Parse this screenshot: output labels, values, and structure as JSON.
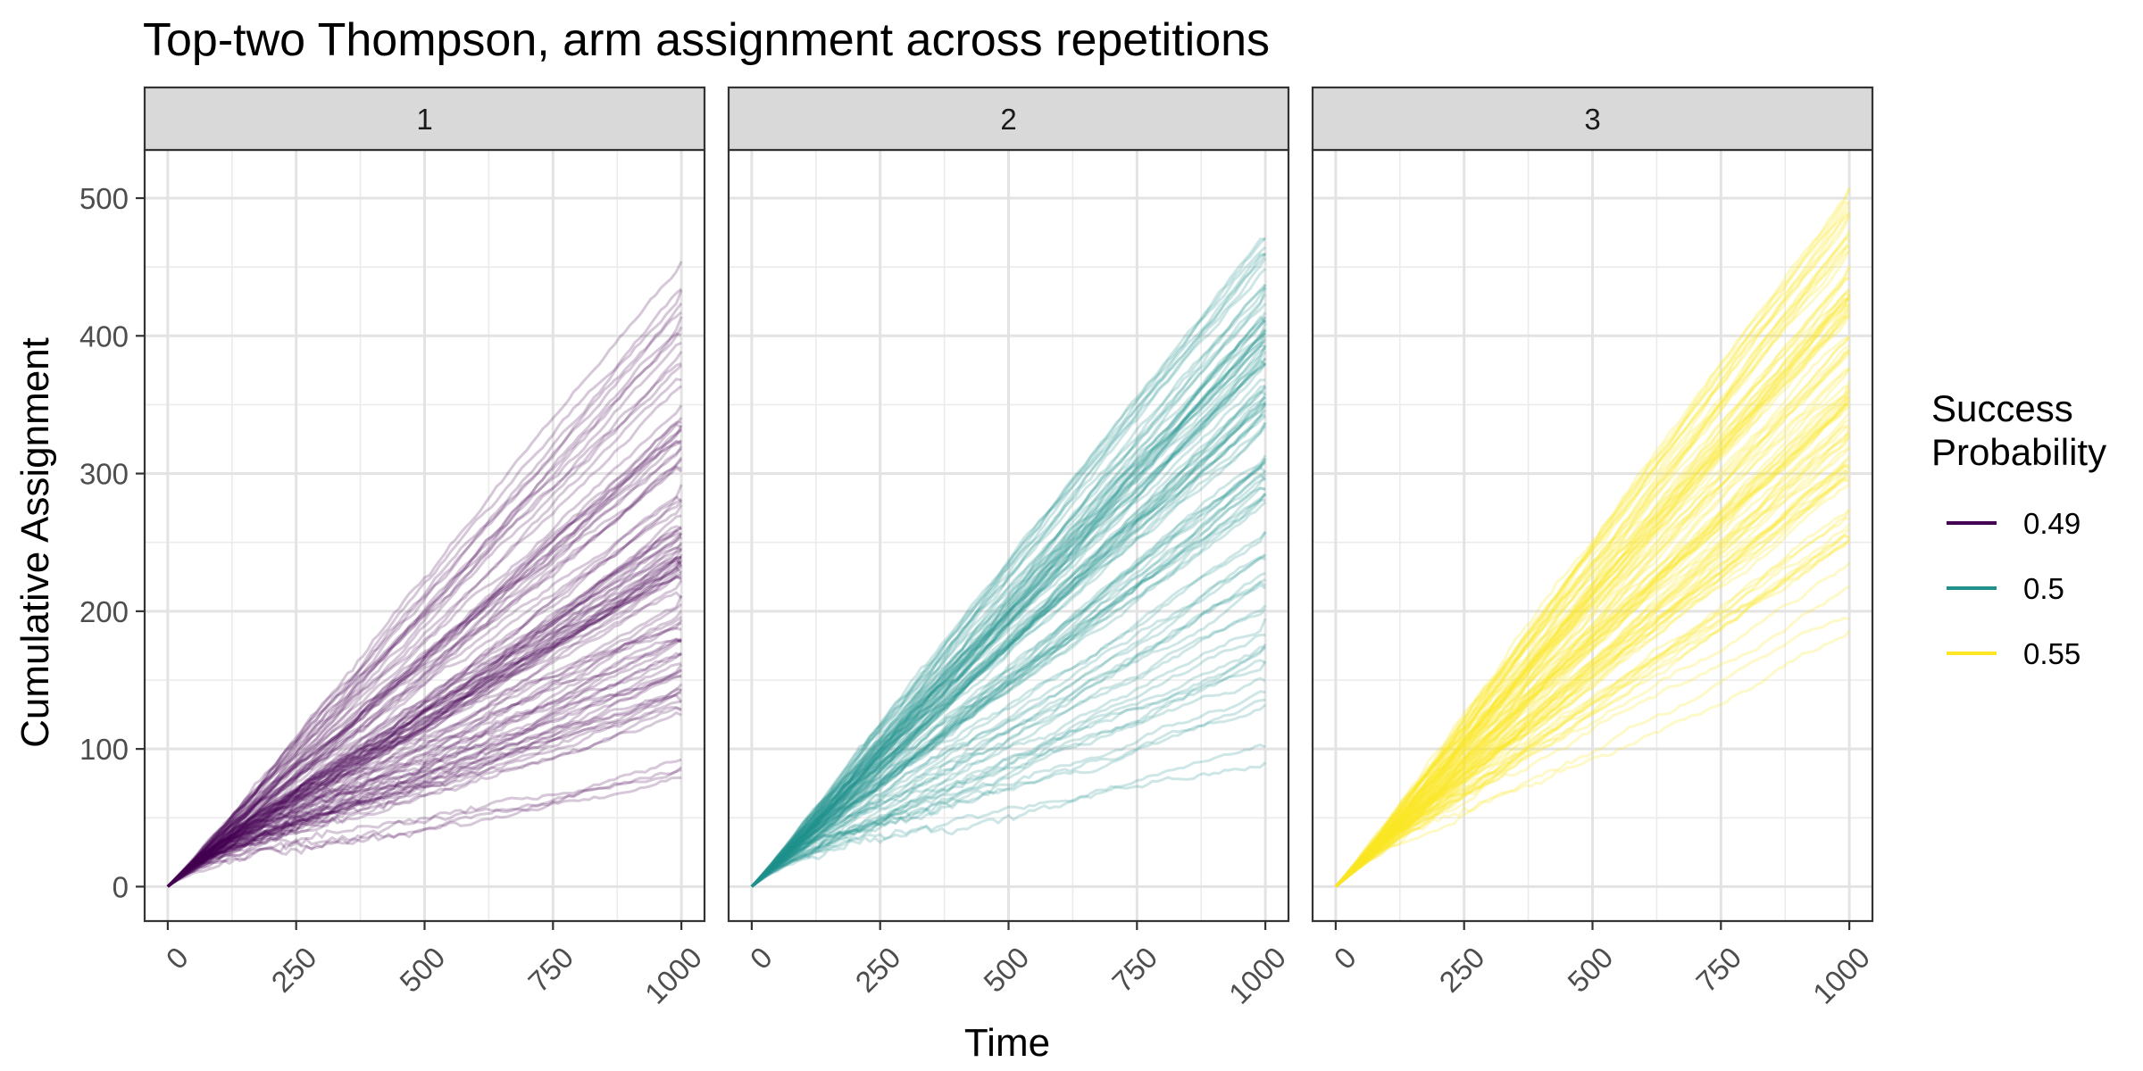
{
  "chart_data": {
    "type": "line",
    "title": "Top-two Thompson, arm assignment across repetitions",
    "xlabel": "Time",
    "ylabel": "Cumulative Assignment",
    "xlim": [
      -45,
      1045
    ],
    "ylim": [
      -25,
      535
    ],
    "x_ticks": [
      "0",
      "250",
      "500",
      "750",
      "1000"
    ],
    "y_ticks": [
      "0",
      "100",
      "200",
      "300",
      "400",
      "500"
    ],
    "grid": true,
    "legend": {
      "title_lines": [
        "Success",
        "Probability"
      ],
      "placement": "right",
      "entries": [
        {
          "label": "0.49",
          "color": "#440154"
        },
        {
          "label": "0.5",
          "color": "#21908C"
        },
        {
          "label": "0.55",
          "color": "#FDE725"
        }
      ]
    },
    "facets": [
      {
        "label": "1",
        "color": "#440154",
        "repetitions": 100,
        "final_value_range": [
          63,
          465
        ],
        "median_final_value": 240
      },
      {
        "label": "2",
        "color": "#21908C",
        "repetitions": 100,
        "final_value_range": [
          74,
          475
        ],
        "median_final_value": 350
      },
      {
        "label": "3",
        "color": "#FDE725",
        "repetitions": 100,
        "final_value_range": [
          165,
          508
        ],
        "median_final_value": 420
      }
    ]
  }
}
